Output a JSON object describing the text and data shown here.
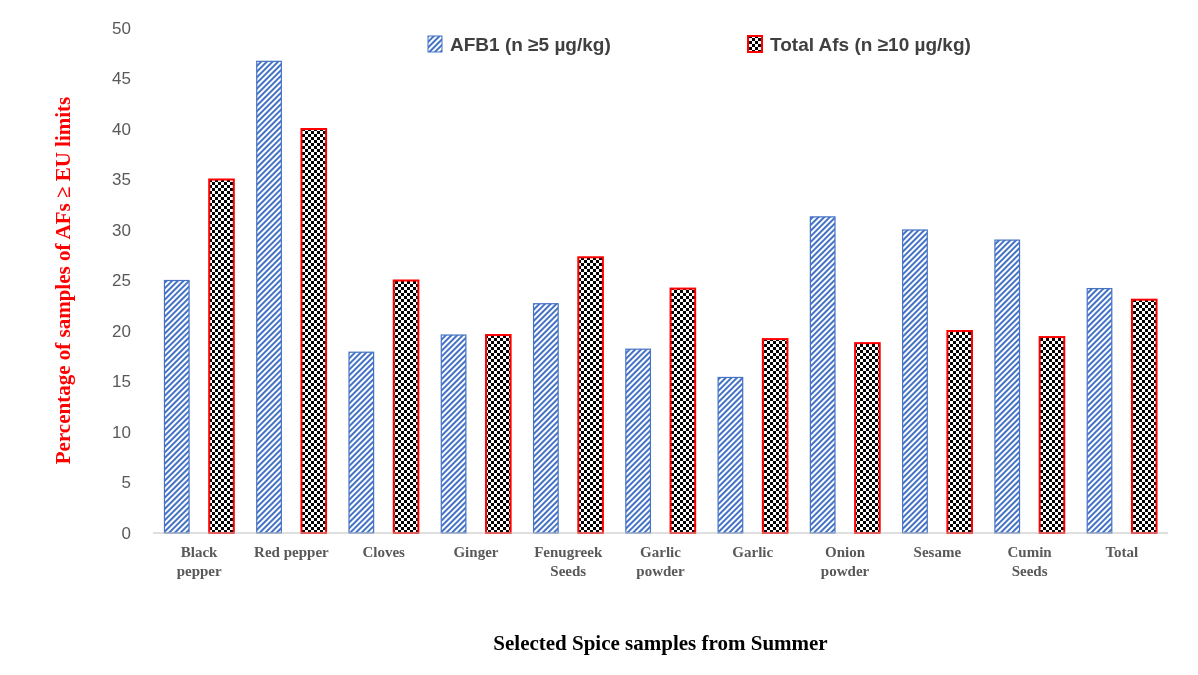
{
  "chart_data": {
    "type": "bar",
    "xlabel": "Selected Spice samples from Summer",
    "ylabel": "Percentage of samples of AFs ≥ EU limits",
    "categories": [
      "Black pepper",
      "Red pepper",
      "Cloves",
      "Ginger",
      "Fenugreek Seeds",
      "Garlic powder",
      "Garlic",
      "Onion powder",
      "Sesame",
      "Cumin Seeds",
      "Total"
    ],
    "series": [
      {
        "name": "AFB1 (n ≥5 µg/kg)",
        "color": "#4472c4",
        "values": [
          25,
          46.7,
          17.9,
          19.6,
          22.7,
          18.2,
          15.4,
          31.3,
          30,
          29,
          24.2
        ]
      },
      {
        "name": "Total Afs (n ≥10 µg/kg)",
        "color": "#ff0000",
        "values": [
          35,
          40,
          25,
          19.6,
          27.3,
          24.2,
          19.2,
          18.8,
          20,
          19.4,
          23.1
        ]
      }
    ],
    "ylim": [
      0,
      50
    ],
    "yticks": [
      0,
      5,
      10,
      15,
      20,
      25,
      30,
      35,
      40,
      45,
      50
    ],
    "grid": false,
    "legend": "top"
  }
}
